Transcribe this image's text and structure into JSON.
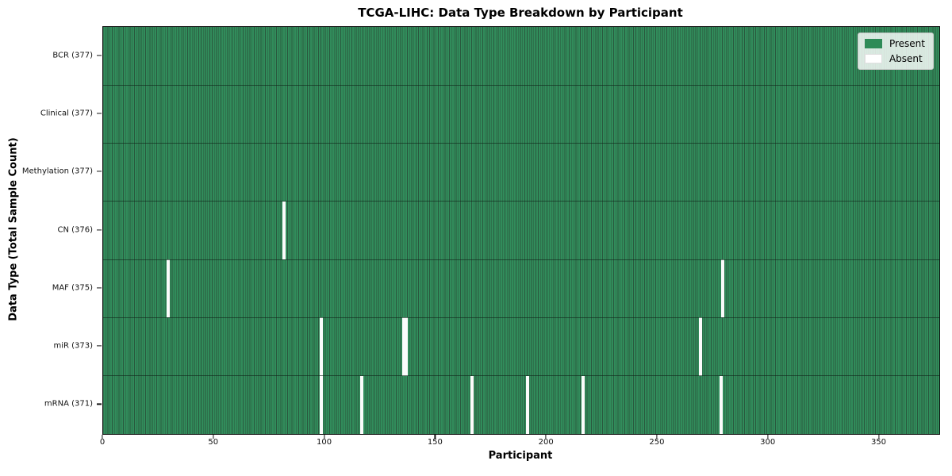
{
  "title": "TCGA-LIHC: Data Type Breakdown by Participant",
  "axes": {
    "xlabel": "Participant",
    "ylabel": "Data Type (Total Sample Count)"
  },
  "legend": {
    "present_label": "Present",
    "absent_label": "Absent"
  },
  "colors": {
    "present": "#2e8b57",
    "absent": "#ffffff",
    "cell_edge": "#2a583e",
    "row_separator": "#1f4731",
    "plot_border": "#0d0d0d",
    "legend_background": "#f2f2f2",
    "legend_border": "#c9c9c9"
  },
  "chart_data": {
    "type": "heatmap",
    "title": "TCGA-LIHC: Data Type Breakdown by Participant",
    "xlabel": "Participant",
    "ylabel": "Data Type (Total Sample Count)",
    "legend_entries": [
      "Present",
      "Absent"
    ],
    "legend_position": "upper right",
    "n_participants": 377,
    "xlim": [
      0,
      377
    ],
    "x_ticks": [
      0,
      50,
      100,
      150,
      200,
      250,
      300,
      350
    ],
    "rows": [
      {
        "label": "BCR (377)",
        "data_type": "BCR",
        "total": 377,
        "absent_participants": []
      },
      {
        "label": "Clinical (377)",
        "data_type": "Clinical",
        "total": 377,
        "absent_participants": []
      },
      {
        "label": "Methylation (377)",
        "data_type": "Methylation",
        "total": 377,
        "absent_participants": []
      },
      {
        "label": "CN (376)",
        "data_type": "CN",
        "total": 376,
        "absent_participants": [
          81
        ]
      },
      {
        "label": "MAF (375)",
        "data_type": "MAF",
        "total": 375,
        "absent_participants": [
          29,
          279
        ]
      },
      {
        "label": "miR (373)",
        "data_type": "miR",
        "total": 373,
        "absent_participants": [
          98,
          135,
          136,
          269
        ]
      },
      {
        "label": "mRNA (371)",
        "data_type": "mRNA",
        "total": 371,
        "absent_participants": [
          98,
          116,
          166,
          191,
          216,
          278
        ]
      }
    ]
  }
}
